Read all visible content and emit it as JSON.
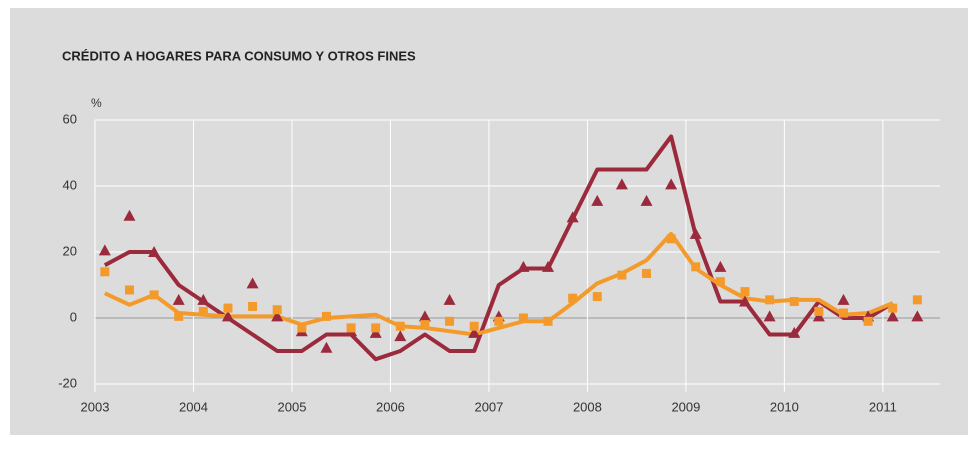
{
  "chart_data": {
    "type": "line",
    "title": "CRÉDITO A HOGARES PARA CONSUMO Y OTROS FINES",
    "y_label": "%",
    "x": [
      2003.1,
      2003.35,
      2003.6,
      2003.85,
      2004.1,
      2004.35,
      2004.6,
      2004.85,
      2005.1,
      2005.35,
      2005.6,
      2005.85,
      2006.1,
      2006.35,
      2006.6,
      2006.85,
      2007.1,
      2007.35,
      2007.6,
      2007.85,
      2008.1,
      2008.35,
      2008.6,
      2008.85,
      2009.1,
      2009.35,
      2009.6,
      2009.85,
      2010.1,
      2010.35,
      2010.6,
      2010.85,
      2011.1,
      2011.35
    ],
    "series": [
      {
        "color": "#9b2a3c",
        "marker": "none",
        "values": [
          16,
          20,
          20,
          10,
          5,
          0,
          -5,
          -10,
          -10,
          -5,
          -5,
          -12.5,
          -10,
          -5,
          -10,
          -10,
          10,
          15,
          15,
          30,
          45,
          45,
          45,
          55,
          25,
          5,
          5,
          -5,
          -5,
          5,
          0,
          0,
          4.5,
          null
        ]
      },
      {
        "color": "#f39a2b",
        "marker": "none",
        "values": [
          7.5,
          4,
          7,
          1.5,
          1,
          0.5,
          0.5,
          0.5,
          -2,
          0,
          0.5,
          1,
          -2.5,
          -3,
          -4,
          -5,
          -3,
          -1,
          -1,
          4.5,
          10.5,
          13.5,
          17.5,
          25.5,
          15,
          10,
          6,
          5,
          5.5,
          5.5,
          1,
          1.5,
          4.5,
          null
        ]
      },
      {
        "color": "#9b2a3c",
        "marker": "triangle",
        "values": [
          20.5,
          31,
          20,
          5.5,
          5.5,
          0.5,
          10.5,
          0.5,
          -4,
          -9,
          -4,
          -4.5,
          -5.5,
          0.5,
          5.5,
          -4.5,
          0.5,
          15.5,
          15.5,
          30.5,
          35.5,
          40.5,
          35.5,
          40.5,
          25.5,
          15.5,
          5,
          0.5,
          -4.5,
          0.5,
          5.5,
          0.5,
          0.5,
          0.5
        ]
      },
      {
        "color": "#f39a2b",
        "marker": "square",
        "values": [
          14,
          8.5,
          7,
          0.5,
          2,
          3,
          3.5,
          2.5,
          -3,
          0.5,
          -3,
          -3,
          -2.5,
          -2,
          -1,
          -2.5,
          -1,
          0,
          -1,
          6,
          6.5,
          13,
          13.5,
          24,
          15.5,
          11,
          8,
          5.5,
          5,
          2,
          1.5,
          -1,
          3,
          5.5
        ]
      }
    ],
    "xlim": [
      2003,
      2011.58
    ],
    "xticks": [
      2003,
      2004,
      2005,
      2006,
      2007,
      2008,
      2009,
      2010,
      2011
    ],
    "ylim": [
      -20,
      60
    ],
    "yticks": [
      -20,
      0,
      20,
      40,
      60
    ],
    "grid": true
  }
}
